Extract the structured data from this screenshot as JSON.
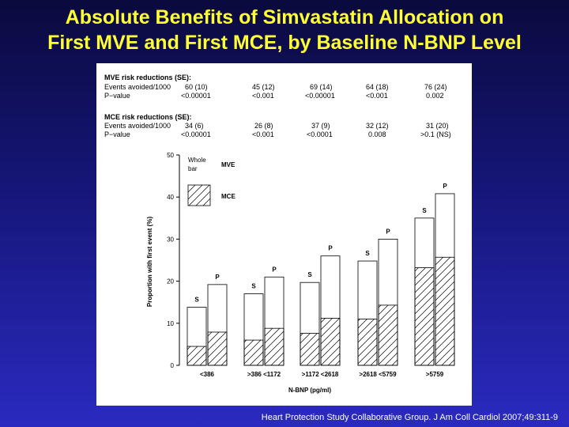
{
  "title_line1": "Absolute Benefits of Simvastatin Allocation on",
  "title_line2": "First MVE and First MCE, by Baseline N-BNP Level",
  "mve_table": {
    "heading": "MVE risk reductions (SE):",
    "row1_label": "Events avoided/1000",
    "row2_label": "P−value",
    "events": [
      "60 (10)",
      "45 (12)",
      "69 (14)",
      "64 (18)",
      "76 (24)"
    ],
    "pvalues": [
      "<0.00001",
      "<0.001",
      "<0.00001",
      "<0.001",
      "0.002"
    ]
  },
  "mce_table": {
    "heading": "MCE risk reductions (SE):",
    "row1_label": "Events avoided/1000",
    "row2_label": "P−value",
    "events": [
      "34 (6)",
      "26 (8)",
      "37 (9)",
      "32 (12)",
      "31 (20)"
    ],
    "pvalues": [
      "<0.00001",
      "<0.001",
      "<0.0001",
      "0.008",
      ">0.1 (NS)"
    ]
  },
  "legend": {
    "whole_bar": "Whole bar",
    "mve": "MVE",
    "mce": "MCE"
  },
  "chart_data": {
    "type": "bar",
    "ylabel": "Proportion with first event (%)",
    "xlabel": "N-BNP (pg/ml)",
    "ylim": [
      0,
      50
    ],
    "yticks": [
      0,
      10,
      20,
      30,
      40,
      50
    ],
    "categories": [
      "<386",
      ">386 <1172",
      ">1172 <2618",
      ">2618 <5759",
      ">5759"
    ],
    "bar_labels": [
      "S",
      "P"
    ],
    "series": [
      {
        "name": "MVE",
        "group": "S",
        "values": [
          13.8,
          17,
          19.7,
          24.8,
          35
        ]
      },
      {
        "name": "MVE",
        "group": "P",
        "values": [
          19.2,
          21,
          26,
          30,
          40.8
        ]
      },
      {
        "name": "MCE",
        "group": "S",
        "values": [
          4.5,
          6,
          7.6,
          11,
          23.2
        ]
      },
      {
        "name": "MCE",
        "group": "P",
        "values": [
          7.9,
          8.8,
          11.2,
          14.3,
          25.7
        ]
      }
    ]
  },
  "citation": "Heart Protection Study Collaborative Group. J Am Coll Cardiol 2007;49:311-9"
}
